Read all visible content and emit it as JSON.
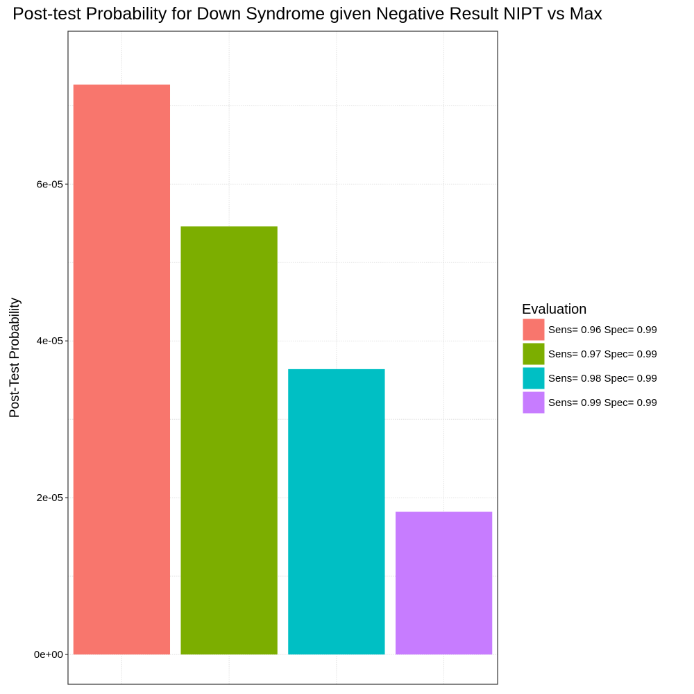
{
  "chart_data": {
    "type": "bar",
    "title": "Post-test Probability for Down Syndrome given Negative Result NIPT vs Max",
    "xlabel": "",
    "ylabel": "Post-Test Probability",
    "categories": [
      "Sens= 0.96 Spec= 0.99",
      "Sens= 0.97 Spec= 0.99",
      "Sens= 0.98 Spec= 0.99",
      "Sens= 0.99 Spec= 0.99"
    ],
    "values": [
      7.27e-05,
      5.46e-05,
      3.64e-05,
      1.82e-05
    ],
    "colors": [
      "#F8766D",
      "#7CAE00",
      "#00BFC4",
      "#C77CFF"
    ],
    "ylim": [
      -3.8e-06,
      7.95e-05
    ],
    "yticks": [
      0,
      2e-05,
      4e-05,
      6e-05
    ],
    "ytick_labels": [
      "0e+00",
      "2e-05",
      "4e-05",
      "6e-05"
    ],
    "grid": true,
    "legend": {
      "title": "Evaluation",
      "position": "right"
    }
  }
}
